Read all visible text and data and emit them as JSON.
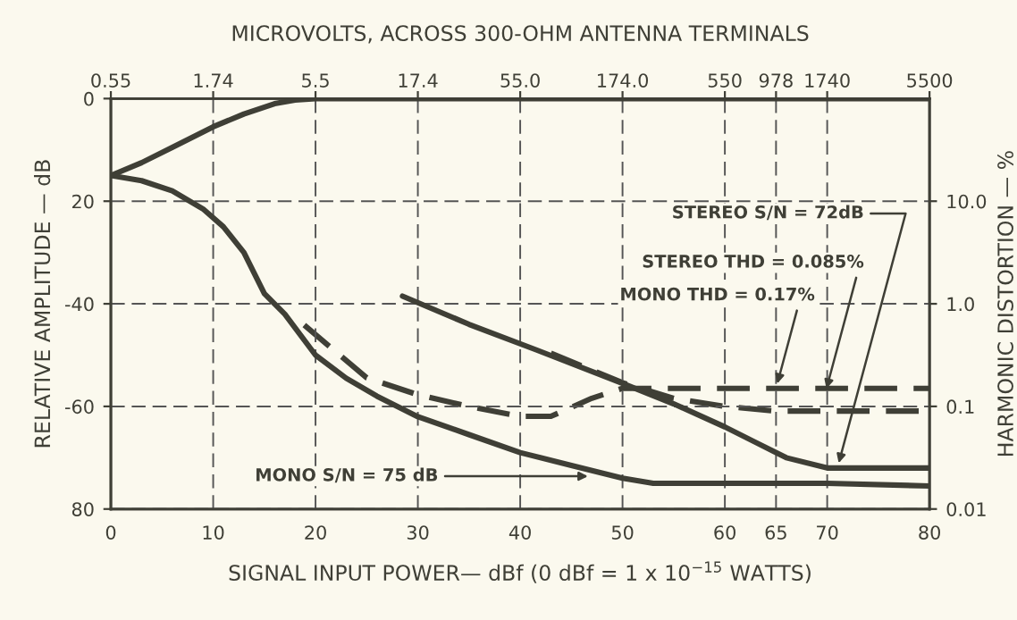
{
  "chart_data": {
    "type": "line",
    "x2label": "MICROVOLTS, ACROSS 300-OHM ANTENNA TERMINALS",
    "xlabel": "SIGNAL INPUT POWER— dBf (0 dBf = 1 x 10$^{−15}$ WATTS)",
    "ylabel": "RELATIVE AMPLITUDE — dB",
    "y2label": "HARMONIC DISTORTION — %",
    "xlim": [
      0,
      80
    ],
    "xticks": [
      0,
      10,
      20,
      30,
      40,
      50,
      60,
      65,
      70,
      80
    ],
    "ylim": [
      -80,
      0
    ],
    "yticks": [
      {
        "value": -80,
        "label": "80"
      },
      {
        "value": -60,
        "label": "-60"
      },
      {
        "value": -40,
        "label": "-40"
      },
      {
        "value": -20,
        "label": "20"
      },
      0
    ],
    "y2lim": [
      0.01,
      100
    ],
    "y2ticks": [
      0.01,
      0.1,
      {
        "value": 1,
        "label": "1.0"
      },
      {
        "value": 10,
        "label": "10.0"
      }
    ],
    "log": "y2",
    "grid": true,
    "series": [
      {
        "color": "#3f3f36",
        "line_style": "solid",
        "x": [
          0,
          3,
          6,
          10,
          13,
          16,
          18,
          20,
          80
        ],
        "values": [
          -15,
          -12.5,
          -9.5,
          -5.5,
          -3,
          -1,
          -0.3,
          0,
          0
        ]
      },
      {
        "color": "#3f3f36",
        "line_style": "solid",
        "x": [
          0,
          3,
          6,
          9,
          11,
          13,
          15,
          17,
          20,
          23,
          26,
          30,
          35,
          40,
          45,
          50,
          53,
          60,
          70,
          80
        ],
        "values": [
          -15,
          -16,
          -18,
          -21.5,
          -25,
          -30,
          -38,
          -42,
          -50,
          -54.5,
          -58,
          -62,
          -65.5,
          -69,
          -71.5,
          -74,
          -75,
          -75,
          -75,
          -75.5
        ]
      },
      {
        "color": "#3f3f36",
        "line_style": "solid",
        "x": [
          28.5,
          35,
          41.6,
          50,
          55,
          60,
          63,
          66,
          70,
          80
        ],
        "values": [
          -38.5,
          -44,
          -49,
          -55.5,
          -59.5,
          -64,
          -67,
          -70,
          -72,
          -72
        ]
      },
      {
        "color": "#3f3f36",
        "line_style": "dashed",
        "axis": "y2",
        "x": [
          18.9,
          25,
          30,
          35,
          40,
          43,
          47,
          50,
          55,
          80
        ],
        "values": [
          0.62,
          0.19,
          0.13,
          0.1,
          0.08,
          0.08,
          0.12,
          0.15,
          0.15,
          0.15
        ]
      },
      {
        "color": "#3f3f36",
        "line_style": "dashed",
        "axis": "y2",
        "x": [
          43,
          50,
          55,
          60,
          65,
          80
        ],
        "values": [
          0.33,
          0.17,
          0.12,
          0.1,
          0.09,
          0.09
        ]
      }
    ],
    "annotations": [
      "0.55",
      "1.74",
      "5.5",
      "17.4",
      "55.0",
      "174.0",
      "550",
      "978",
      "1740",
      "5500",
      {
        "text": "STEREO S/N = 72dB",
        "x": 71,
        "y": -72
      },
      {
        "text": "STEREO THD = 0.085%",
        "x": 69.8,
        "y": -57.5
      },
      {
        "text": "MONO THD = 0.17%",
        "x": 65,
        "y": -56.5
      },
      {
        "text": "MONO S/N = 75 dB",
        "x": 47,
        "y": -73
      }
    ]
  }
}
